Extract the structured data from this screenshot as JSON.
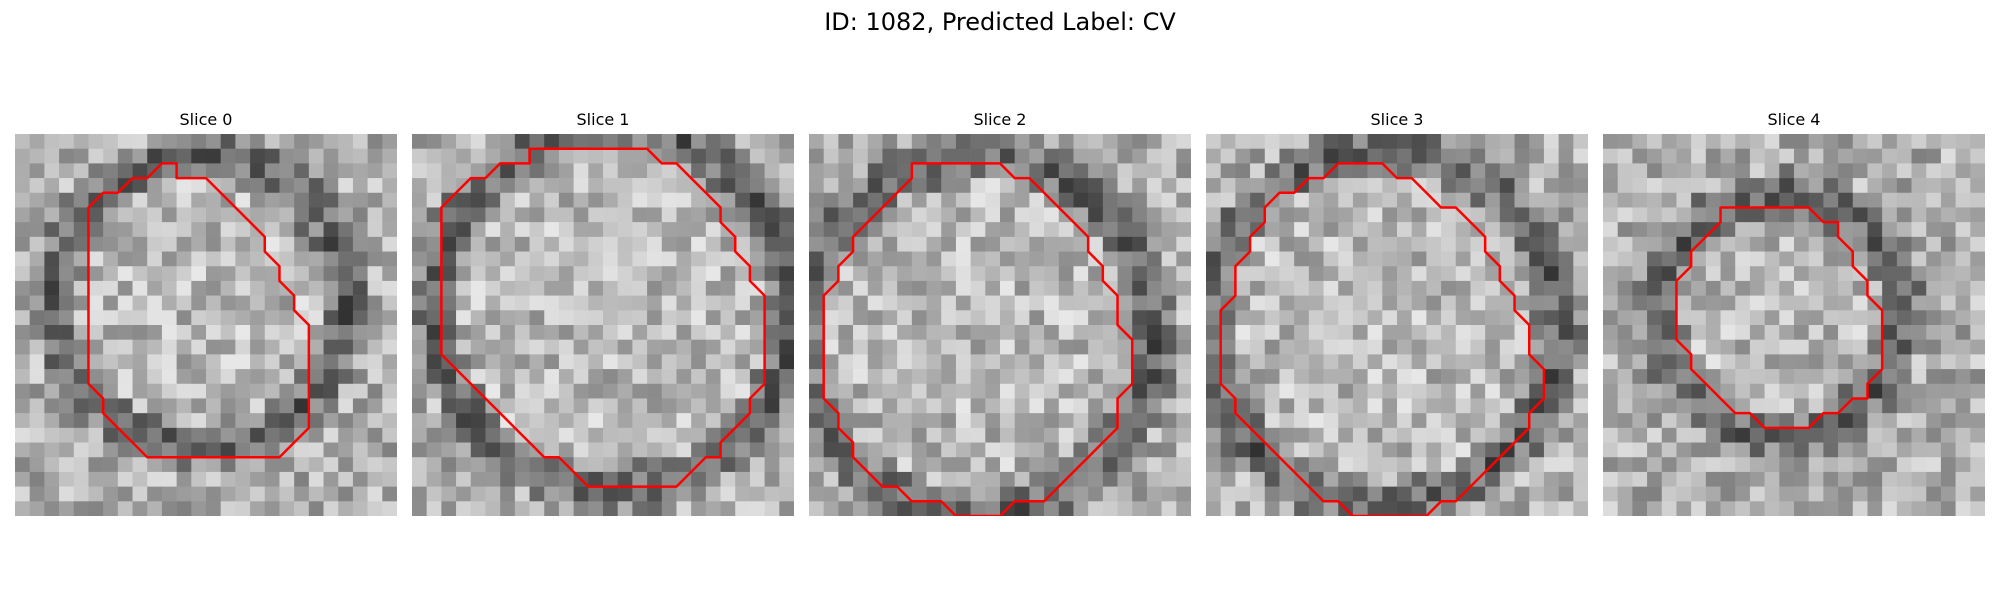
{
  "figure": {
    "title": "ID: 1082, Predicted Label: CV"
  },
  "colors": {
    "contour": "#ff0000",
    "background": "#ffffff"
  },
  "panels": [
    {
      "title": "Slice 0",
      "contour": [
        [
          11,
          3
        ],
        [
          13,
          3
        ],
        [
          16,
          6
        ],
        [
          17,
          7
        ],
        [
          17,
          8
        ],
        [
          18,
          9
        ],
        [
          18,
          10
        ],
        [
          19,
          11
        ],
        [
          19,
          12
        ],
        [
          20,
          13
        ],
        [
          20,
          20
        ],
        [
          19,
          21
        ],
        [
          19,
          21
        ],
        [
          18,
          22
        ],
        [
          9,
          22
        ],
        [
          8,
          21
        ],
        [
          7,
          20
        ],
        [
          6,
          19
        ],
        [
          6,
          18
        ],
        [
          5,
          17
        ],
        [
          5,
          5
        ],
        [
          6,
          4
        ],
        [
          7,
          4
        ],
        [
          8,
          3
        ],
        [
          9,
          3
        ],
        [
          10,
          2
        ],
        [
          11,
          2
        ]
      ]
    },
    {
      "title": "Slice 1",
      "contour": [
        [
          6,
          2
        ],
        [
          8,
          2
        ],
        [
          8,
          1
        ],
        [
          16,
          1
        ],
        [
          17,
          2
        ],
        [
          18,
          2
        ],
        [
          19,
          3
        ],
        [
          19,
          3
        ],
        [
          20,
          4
        ],
        [
          21,
          5
        ],
        [
          21,
          6
        ],
        [
          22,
          7
        ],
        [
          22,
          8
        ],
        [
          23,
          9
        ],
        [
          23,
          10
        ],
        [
          24,
          11
        ],
        [
          24,
          17
        ],
        [
          23,
          18
        ],
        [
          23,
          19
        ],
        [
          22,
          20
        ],
        [
          21,
          21
        ],
        [
          21,
          22
        ],
        [
          20,
          22
        ],
        [
          19,
          23
        ],
        [
          18,
          24
        ],
        [
          12,
          24
        ],
        [
          11,
          23
        ],
        [
          10,
          22
        ],
        [
          9,
          22
        ],
        [
          8,
          21
        ],
        [
          7,
          20
        ],
        [
          6,
          19
        ],
        [
          5,
          18
        ],
        [
          4,
          17
        ],
        [
          3,
          16
        ],
        [
          2,
          15
        ],
        [
          2,
          5
        ],
        [
          3,
          4
        ],
        [
          3,
          4
        ],
        [
          4,
          3
        ],
        [
          5,
          3
        ],
        [
          6,
          2
        ]
      ]
    },
    {
      "title": "Slice 2",
      "contour": [
        [
          8,
          2
        ],
        [
          13,
          2
        ],
        [
          14,
          3
        ],
        [
          15,
          3
        ],
        [
          16,
          4
        ],
        [
          17,
          5
        ],
        [
          18,
          6
        ],
        [
          19,
          7
        ],
        [
          19,
          8
        ],
        [
          20,
          9
        ],
        [
          20,
          10
        ],
        [
          21,
          11
        ],
        [
          21,
          13
        ],
        [
          22,
          14
        ],
        [
          22,
          17
        ],
        [
          21,
          18
        ],
        [
          21,
          20
        ],
        [
          20,
          21
        ],
        [
          19,
          22
        ],
        [
          18,
          23
        ],
        [
          17,
          24
        ],
        [
          16,
          25
        ],
        [
          14,
          25
        ],
        [
          13,
          26
        ],
        [
          10,
          26
        ],
        [
          9,
          25
        ],
        [
          7,
          25
        ],
        [
          6,
          24
        ],
        [
          5,
          24
        ],
        [
          4,
          23
        ],
        [
          3,
          22
        ],
        [
          3,
          21
        ],
        [
          2,
          20
        ],
        [
          2,
          19
        ],
        [
          1,
          18
        ],
        [
          1,
          11
        ],
        [
          2,
          10
        ],
        [
          2,
          9
        ],
        [
          3,
          8
        ],
        [
          3,
          7
        ],
        [
          4,
          6
        ],
        [
          5,
          5
        ],
        [
          6,
          4
        ],
        [
          7,
          3
        ],
        [
          7,
          2
        ],
        [
          8,
          2
        ]
      ]
    },
    {
      "title": "Slice 3",
      "contour": [
        [
          10,
          2
        ],
        [
          12,
          2
        ],
        [
          13,
          3
        ],
        [
          14,
          3
        ],
        [
          15,
          4
        ],
        [
          16,
          5
        ],
        [
          17,
          5
        ],
        [
          18,
          6
        ],
        [
          19,
          7
        ],
        [
          19,
          8
        ],
        [
          20,
          9
        ],
        [
          20,
          10
        ],
        [
          21,
          11
        ],
        [
          21,
          12
        ],
        [
          22,
          13
        ],
        [
          22,
          15
        ],
        [
          23,
          16
        ],
        [
          23,
          18
        ],
        [
          22,
          19
        ],
        [
          22,
          20
        ],
        [
          21,
          21
        ],
        [
          20,
          22
        ],
        [
          19,
          23
        ],
        [
          18,
          24
        ],
        [
          17,
          25
        ],
        [
          16,
          25
        ],
        [
          15,
          26
        ],
        [
          10,
          26
        ],
        [
          9,
          25
        ],
        [
          8,
          25
        ],
        [
          7,
          24
        ],
        [
          6,
          23
        ],
        [
          5,
          22
        ],
        [
          4,
          21
        ],
        [
          3,
          20
        ],
        [
          2,
          19
        ],
        [
          2,
          18
        ],
        [
          1,
          17
        ],
        [
          1,
          12
        ],
        [
          2,
          11
        ],
        [
          2,
          9
        ],
        [
          3,
          8
        ],
        [
          3,
          7
        ],
        [
          4,
          6
        ],
        [
          4,
          5
        ],
        [
          5,
          4
        ],
        [
          6,
          4
        ],
        [
          7,
          3
        ],
        [
          8,
          3
        ],
        [
          9,
          2
        ],
        [
          10,
          2
        ]
      ]
    },
    {
      "title": "Slice 4",
      "contour": [
        [
          9,
          5
        ],
        [
          14,
          5
        ],
        [
          15,
          6
        ],
        [
          16,
          6
        ],
        [
          16,
          7
        ],
        [
          17,
          8
        ],
        [
          17,
          9
        ],
        [
          18,
          10
        ],
        [
          18,
          11
        ],
        [
          19,
          12
        ],
        [
          19,
          16
        ],
        [
          18,
          17
        ],
        [
          18,
          18
        ],
        [
          17,
          18
        ],
        [
          16,
          19
        ],
        [
          15,
          19
        ],
        [
          14,
          20
        ],
        [
          11,
          20
        ],
        [
          10,
          19
        ],
        [
          9,
          19
        ],
        [
          8,
          18
        ],
        [
          7,
          17
        ],
        [
          6,
          16
        ],
        [
          6,
          15
        ],
        [
          5,
          14
        ],
        [
          5,
          10
        ],
        [
          6,
          9
        ],
        [
          6,
          8
        ],
        [
          7,
          7
        ],
        [
          8,
          6
        ],
        [
          8,
          5
        ],
        [
          9,
          5
        ]
      ]
    }
  ]
}
